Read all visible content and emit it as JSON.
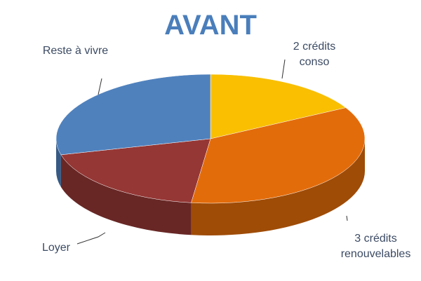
{
  "chart_data": {
    "type": "pie3d",
    "title": "AVANT",
    "categories": [
      "2 crédits conso",
      "3 crédits renouvelables",
      "Loyer",
      "Reste à vivre"
    ],
    "values": [
      17,
      35,
      19,
      29
    ],
    "colors": [
      "#f9bf00",
      "#e36c0a",
      "#953735",
      "#4f81bd"
    ]
  }
}
